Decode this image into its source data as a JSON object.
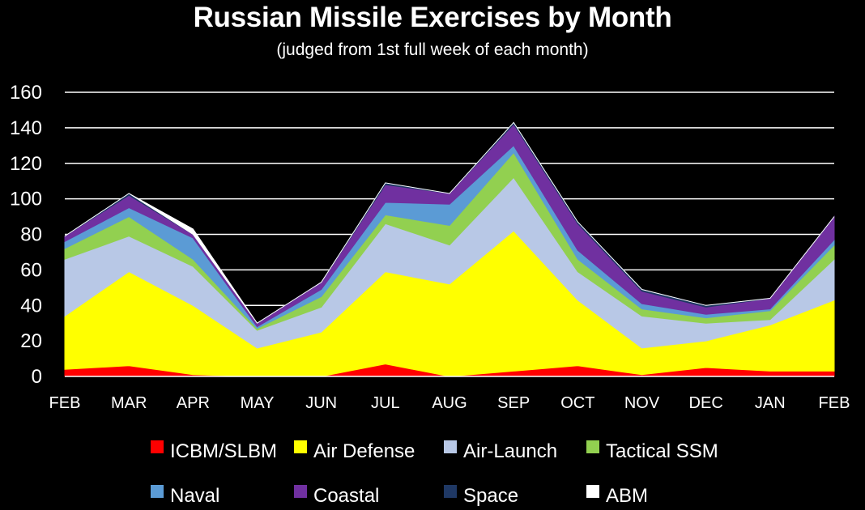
{
  "chart_data": {
    "type": "area",
    "stacked": true,
    "title": "Russian Missile Exercises by Month",
    "subtitle": "(judged from 1st full week of each month)",
    "categories": [
      "FEB",
      "MAR",
      "APR",
      "MAY",
      "JUN",
      "JUL",
      "AUG",
      "SEP",
      "OCT",
      "NOV",
      "DEC",
      "JAN",
      "FEB"
    ],
    "ylim": [
      0,
      160
    ],
    "yticks": [
      0,
      20,
      40,
      60,
      80,
      100,
      120,
      140,
      160
    ],
    "grid": true,
    "legend_position": "bottom",
    "series": [
      {
        "name": "ICBM/SLBM",
        "color": "#ff0000",
        "values": [
          4,
          6,
          1,
          0,
          0,
          7,
          0,
          3,
          6,
          1,
          5,
          3,
          3
        ]
      },
      {
        "name": "Air Defense",
        "color": "#ffff00",
        "values": [
          30,
          53,
          39,
          16,
          25,
          52,
          52,
          79,
          37,
          15,
          15,
          26,
          40
        ]
      },
      {
        "name": "Air-Launch",
        "color": "#b8c8e6",
        "values": [
          32,
          20,
          22,
          10,
          14,
          27,
          22,
          30,
          16,
          18,
          10,
          3,
          23
        ]
      },
      {
        "name": "Tactical SSM",
        "color": "#92d050",
        "values": [
          6,
          11,
          4,
          1,
          6,
          5,
          11,
          14,
          7,
          4,
          3,
          5,
          8
        ]
      },
      {
        "name": "Naval",
        "color": "#5b9bd5",
        "values": [
          4,
          5,
          12,
          1,
          4,
          7,
          12,
          4,
          5,
          3,
          2,
          1,
          3
        ]
      },
      {
        "name": "Coastal",
        "color": "#7030a0",
        "values": [
          3,
          7,
          2,
          2,
          4,
          10,
          6,
          12,
          15,
          7,
          4,
          6,
          13
        ]
      },
      {
        "name": "Space",
        "color": "#1f3864",
        "values": [
          0,
          1,
          0,
          0,
          0,
          1,
          0,
          1,
          1,
          1,
          1,
          0,
          0
        ]
      },
      {
        "name": "ABM",
        "color": "#ffffff",
        "values": [
          0,
          0,
          3,
          0,
          0,
          0,
          0,
          0,
          0,
          0,
          0,
          0,
          0
        ]
      }
    ]
  }
}
